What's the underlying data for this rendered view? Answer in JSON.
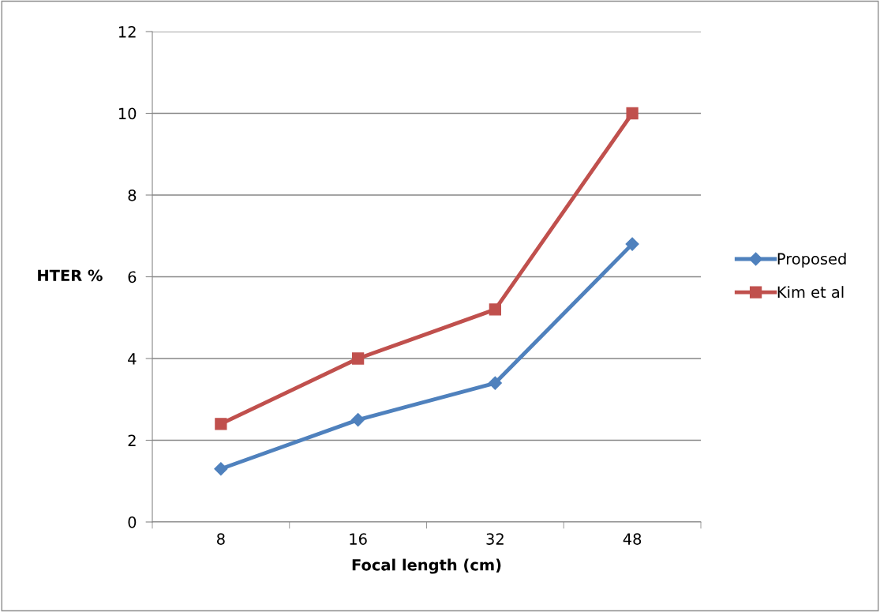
{
  "chart_data": {
    "type": "line",
    "xlabel": "Focal length (cm)",
    "ylabel": "HTER %",
    "categories": [
      "8",
      "16",
      "32",
      "48"
    ],
    "series": [
      {
        "name": "Proposed",
        "color": "#4f81bd",
        "marker": "diamond",
        "values": [
          1.3,
          2.5,
          3.4,
          6.8
        ]
      },
      {
        "name": "Kim et al",
        "color": "#c0504d",
        "marker": "square",
        "values": [
          2.4,
          4.0,
          5.2,
          10.0
        ]
      }
    ],
    "ylim": [
      0,
      12
    ],
    "yticks": [
      0,
      2,
      4,
      6,
      8,
      10,
      12
    ],
    "grid": "y",
    "legend": "right",
    "line_style": "solid"
  }
}
